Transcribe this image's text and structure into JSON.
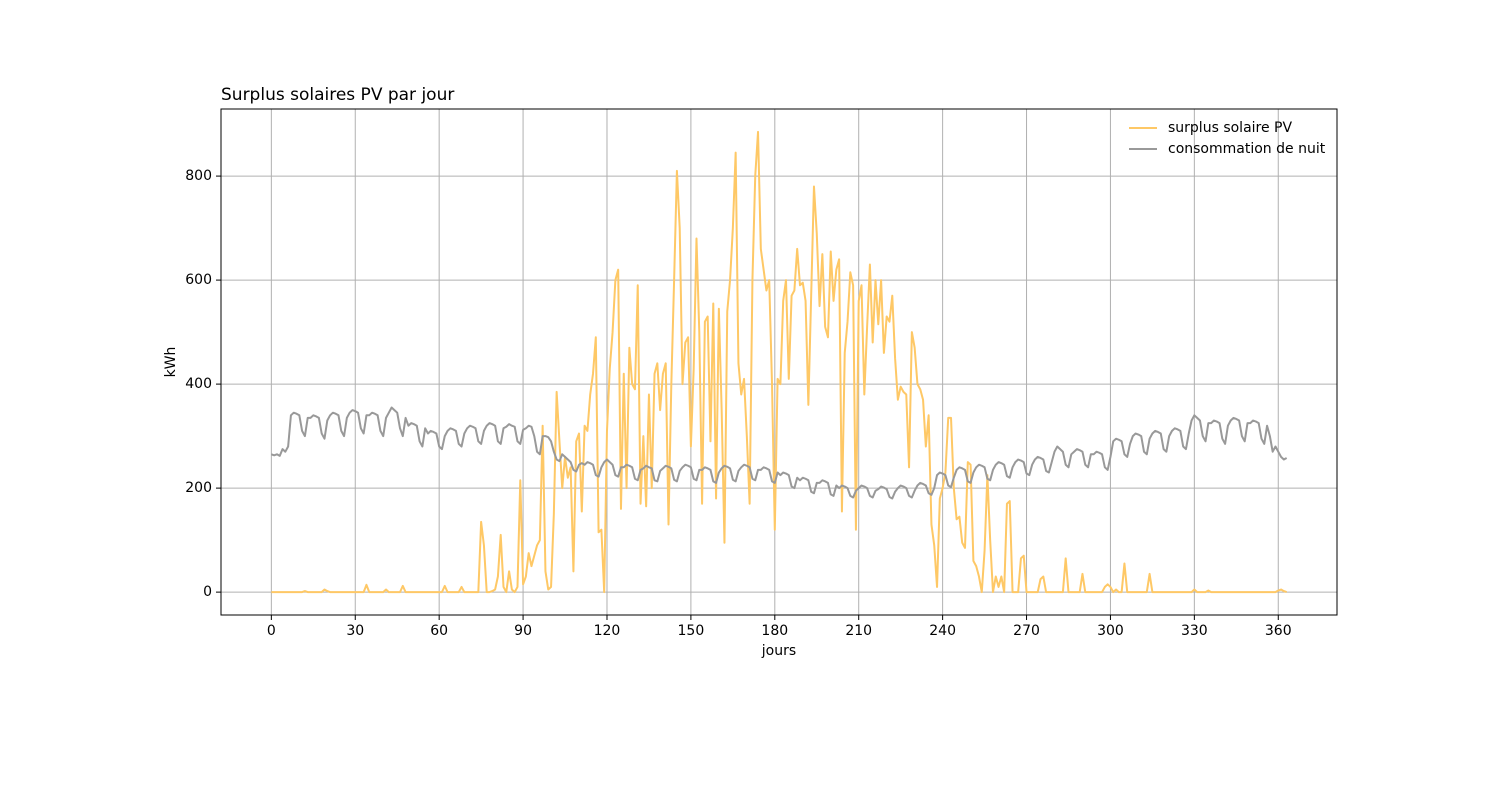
{
  "chart_data": {
    "type": "line",
    "title": "Surplus solaires PV par jour",
    "xlabel": "jours",
    "ylabel": "kWh",
    "x": [
      0,
      1,
      2,
      3,
      4,
      5,
      6,
      7,
      8,
      9,
      10,
      11,
      12,
      13,
      14,
      15,
      16,
      17,
      18,
      19,
      20,
      21,
      22,
      23,
      24,
      25,
      26,
      27,
      28,
      29,
      30,
      31,
      32,
      33,
      34,
      35,
      36,
      37,
      38,
      39,
      40,
      41,
      42,
      43,
      44,
      45,
      46,
      47,
      48,
      49,
      50,
      51,
      52,
      53,
      54,
      55,
      56,
      57,
      58,
      59,
      60,
      61,
      62,
      63,
      64,
      65,
      66,
      67,
      68,
      69,
      70,
      71,
      72,
      73,
      74,
      75,
      76,
      77,
      78,
      79,
      80,
      81,
      82,
      83,
      84,
      85,
      86,
      87,
      88,
      89,
      90,
      91,
      92,
      93,
      94,
      95,
      96,
      97,
      98,
      99,
      100,
      101,
      102,
      103,
      104,
      105,
      106,
      107,
      108,
      109,
      110,
      111,
      112,
      113,
      114,
      115,
      116,
      117,
      118,
      119,
      120,
      121,
      122,
      123,
      124,
      125,
      126,
      127,
      128,
      129,
      130,
      131,
      132,
      133,
      134,
      135,
      136,
      137,
      138,
      139,
      140,
      141,
      142,
      143,
      144,
      145,
      146,
      147,
      148,
      149,
      150,
      151,
      152,
      153,
      154,
      155,
      156,
      157,
      158,
      159,
      160,
      161,
      162,
      163,
      164,
      165,
      166,
      167,
      168,
      169,
      170,
      171,
      172,
      173,
      174,
      175,
      176,
      177,
      178,
      179,
      180,
      181,
      182,
      183,
      184,
      185,
      186,
      187,
      188,
      189,
      190,
      191,
      192,
      193,
      194,
      195,
      196,
      197,
      198,
      199,
      200,
      201,
      202,
      203,
      204,
      205,
      206,
      207,
      208,
      209,
      210,
      211,
      212,
      213,
      214,
      215,
      216,
      217,
      218,
      219,
      220,
      221,
      222,
      223,
      224,
      225,
      226,
      227,
      228,
      229,
      230,
      231,
      232,
      233,
      234,
      235,
      236,
      237,
      238,
      239,
      240,
      241,
      242,
      243,
      244,
      245,
      246,
      247,
      248,
      249,
      250,
      251,
      252,
      253,
      254,
      255,
      256,
      257,
      258,
      259,
      260,
      261,
      262,
      263,
      264,
      265,
      266,
      267,
      268,
      269,
      270,
      271,
      272,
      273,
      274,
      275,
      276,
      277,
      278,
      279,
      280,
      281,
      282,
      283,
      284,
      285,
      286,
      287,
      288,
      289,
      290,
      291,
      292,
      293,
      294,
      295,
      296,
      297,
      298,
      299,
      300,
      301,
      302,
      303,
      304,
      305,
      306,
      307,
      308,
      309,
      310,
      311,
      312,
      313,
      314,
      315,
      316,
      317,
      318,
      319,
      320,
      321,
      322,
      323,
      324,
      325,
      326,
      327,
      328,
      329,
      330,
      331,
      332,
      333,
      334,
      335,
      336,
      337,
      338,
      339,
      340,
      341,
      342,
      343,
      344,
      345,
      346,
      347,
      348,
      349,
      350,
      351,
      352,
      353,
      354,
      355,
      356,
      357,
      358,
      359,
      360,
      361,
      362,
      363
    ],
    "series": [
      {
        "name": "surplus solaire PV",
        "color": "#fec866",
        "values": [
          0,
          0,
          0,
          0,
          0,
          0,
          0,
          0,
          0,
          0,
          0,
          0,
          2,
          0,
          0,
          0,
          0,
          0,
          0,
          5,
          2,
          0,
          0,
          0,
          0,
          0,
          0,
          0,
          0,
          0,
          0,
          0,
          0,
          0,
          14,
          0,
          0,
          0,
          0,
          0,
          0,
          5,
          0,
          0,
          0,
          0,
          0,
          12,
          0,
          0,
          0,
          0,
          0,
          0,
          0,
          0,
          0,
          0,
          0,
          0,
          0,
          0,
          12,
          0,
          0,
          0,
          0,
          0,
          10,
          0,
          0,
          0,
          0,
          0,
          0,
          135,
          90,
          0,
          0,
          2,
          5,
          30,
          110,
          10,
          0,
          40,
          5,
          0,
          10,
          215,
          15,
          30,
          75,
          50,
          70,
          90,
          100,
          320,
          40,
          5,
          10,
          150,
          385,
          290,
          200,
          260,
          220,
          240,
          40,
          290,
          305,
          155,
          320,
          310,
          380,
          420,
          490,
          115,
          120,
          0,
          310,
          430,
          500,
          600,
          620,
          160,
          420,
          200,
          470,
          400,
          390,
          590,
          170,
          300,
          165,
          380,
          200,
          420,
          440,
          350,
          420,
          440,
          130,
          400,
          600,
          810,
          700,
          400,
          480,
          490,
          280,
          430,
          680,
          500,
          170,
          520,
          530,
          290,
          555,
          180,
          545,
          350,
          95,
          540,
          600,
          700,
          845,
          440,
          380,
          410,
          300,
          170,
          600,
          800,
          885,
          660,
          620,
          580,
          600,
          400,
          120,
          410,
          400,
          560,
          600,
          410,
          570,
          580,
          660,
          590,
          595,
          560,
          360,
          570,
          780,
          690,
          550,
          650,
          510,
          490,
          655,
          560,
          620,
          640,
          155,
          460,
          520,
          615,
          590,
          120,
          560,
          590,
          380,
          510,
          630,
          480,
          600,
          515,
          600,
          460,
          530,
          520,
          570,
          450,
          370,
          395,
          385,
          380,
          240,
          500,
          470,
          400,
          390,
          370,
          280,
          340,
          130,
          90,
          10,
          180,
          200,
          230,
          335,
          335,
          200,
          140,
          145,
          95,
          85,
          250,
          245,
          60,
          50,
          30,
          0,
          80,
          225,
          100,
          0,
          30,
          10,
          30,
          0,
          170,
          175,
          0,
          0,
          0,
          65,
          70,
          0,
          0,
          0,
          0,
          0,
          25,
          30,
          0,
          0,
          0,
          0,
          0,
          0,
          0,
          65,
          0,
          0,
          0,
          0,
          0,
          35,
          0,
          0,
          0,
          0,
          0,
          0,
          0,
          10,
          15,
          10,
          0,
          5,
          0,
          0,
          55,
          0,
          0,
          0,
          0,
          0,
          0,
          0,
          0,
          35,
          0,
          0,
          0,
          0,
          0,
          0,
          0,
          0,
          0,
          0,
          0,
          0,
          0,
          0,
          0,
          5,
          0,
          0,
          0,
          0,
          3,
          0,
          0,
          0,
          0,
          0,
          0,
          0,
          0,
          0,
          0,
          0,
          0,
          0,
          0,
          0,
          0,
          0,
          0,
          0,
          0,
          0,
          0,
          0,
          0,
          3,
          5,
          2,
          0
        ]
      },
      {
        "name": "consommation de nuit",
        "color": "#999999",
        "values": [
          265,
          263,
          265,
          262,
          275,
          270,
          280,
          340,
          345,
          343,
          340,
          310,
          300,
          335,
          335,
          340,
          338,
          335,
          305,
          295,
          330,
          340,
          345,
          343,
          340,
          310,
          300,
          335,
          345,
          350,
          348,
          345,
          315,
          305,
          340,
          340,
          345,
          343,
          340,
          310,
          300,
          335,
          345,
          355,
          350,
          345,
          315,
          300,
          335,
          320,
          325,
          323,
          320,
          290,
          280,
          315,
          305,
          310,
          308,
          305,
          280,
          275,
          300,
          310,
          315,
          313,
          310,
          285,
          280,
          305,
          315,
          320,
          318,
          315,
          290,
          285,
          310,
          320,
          325,
          323,
          320,
          290,
          285,
          315,
          318,
          323,
          320,
          318,
          290,
          285,
          312,
          315,
          320,
          318,
          300,
          270,
          265,
          300,
          300,
          298,
          290,
          270,
          255,
          252,
          265,
          260,
          255,
          250,
          235,
          232,
          245,
          248,
          245,
          250,
          248,
          245,
          225,
          222,
          240,
          250,
          255,
          250,
          245,
          225,
          222,
          240,
          240,
          245,
          243,
          240,
          218,
          215,
          235,
          238,
          243,
          240,
          238,
          215,
          213,
          233,
          238,
          243,
          241,
          238,
          216,
          213,
          233,
          240,
          245,
          243,
          240,
          218,
          215,
          235,
          235,
          240,
          238,
          235,
          213,
          210,
          230,
          238,
          243,
          241,
          238,
          216,
          213,
          233,
          240,
          245,
          243,
          240,
          218,
          215,
          235,
          235,
          240,
          238,
          235,
          213,
          210,
          230,
          225,
          230,
          228,
          225,
          203,
          200,
          220,
          215,
          220,
          218,
          215,
          193,
          190,
          210,
          210,
          215,
          213,
          210,
          188,
          185,
          205,
          200,
          205,
          203,
          200,
          185,
          182,
          195,
          200,
          205,
          203,
          200,
          185,
          182,
          195,
          198,
          203,
          201,
          198,
          183,
          180,
          193,
          200,
          205,
          203,
          200,
          185,
          182,
          195,
          205,
          210,
          208,
          205,
          190,
          187,
          200,
          225,
          230,
          228,
          225,
          205,
          202,
          220,
          235,
          240,
          238,
          235,
          213,
          210,
          230,
          240,
          245,
          243,
          240,
          218,
          215,
          235,
          245,
          250,
          248,
          245,
          223,
          220,
          240,
          250,
          255,
          253,
          250,
          228,
          225,
          245,
          255,
          260,
          258,
          255,
          233,
          230,
          250,
          270,
          280,
          275,
          270,
          245,
          240,
          265,
          270,
          275,
          273,
          270,
          245,
          240,
          265,
          265,
          270,
          268,
          265,
          240,
          235,
          260,
          290,
          295,
          293,
          290,
          265,
          260,
          285,
          300,
          305,
          303,
          300,
          270,
          265,
          295,
          305,
          310,
          308,
          305,
          275,
          270,
          300,
          310,
          315,
          313,
          310,
          280,
          275,
          305,
          330,
          340,
          335,
          330,
          300,
          290,
          325,
          325,
          330,
          328,
          325,
          295,
          285,
          320,
          330,
          335,
          333,
          330,
          300,
          290,
          325,
          325,
          330,
          328,
          325,
          295,
          285,
          320,
          300,
          270,
          280,
          270,
          260,
          255,
          258
        ]
      }
    ],
    "xlim": [
      -18,
      381
    ],
    "xticks": [
      0,
      30,
      60,
      90,
      120,
      150,
      180,
      210,
      240,
      270,
      300,
      330,
      360
    ],
    "ylim": [
      -44,
      929
    ],
    "yticks": [
      0,
      200,
      400,
      600,
      800
    ],
    "grid": true,
    "legend": "upper right"
  }
}
